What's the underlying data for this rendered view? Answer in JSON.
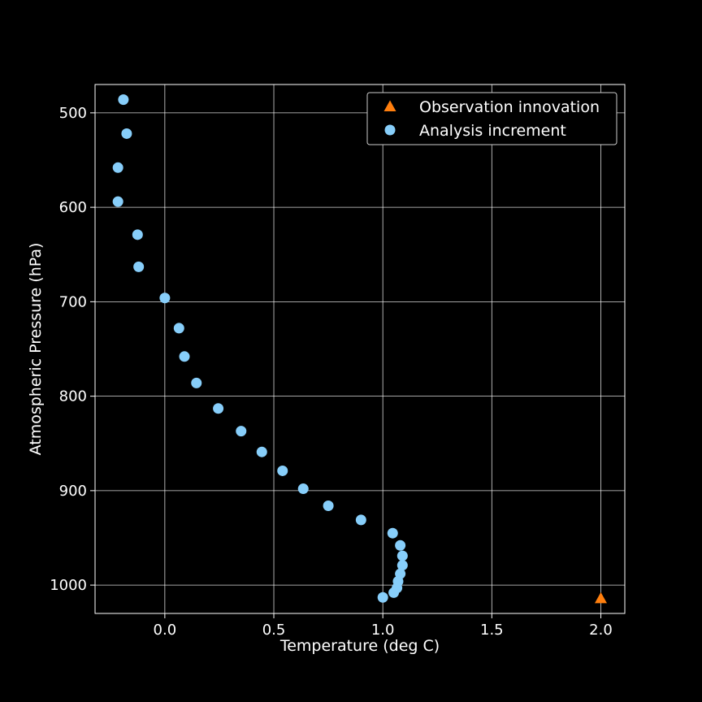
{
  "chart_data": {
    "type": "scatter",
    "xlabel": "Temperature (deg C)",
    "ylabel": "Atmospheric Pressure (hPa)",
    "xlim": [
      -0.32,
      2.11
    ],
    "ylim": [
      1030,
      470
    ],
    "y_inverted": true,
    "x_ticks": [
      0.0,
      0.5,
      1.0,
      1.5,
      2.0
    ],
    "x_tick_labels": [
      "0.0",
      "0.5",
      "1.0",
      "1.5",
      "2.0"
    ],
    "y_ticks": [
      500,
      600,
      700,
      800,
      900,
      1000
    ],
    "y_tick_labels": [
      "500",
      "600",
      "700",
      "800",
      "900",
      "1000"
    ],
    "grid": true,
    "legend_position": "top-right",
    "background": "#000000",
    "foreground": "#ffffff",
    "series": [
      {
        "name": "Observation innovation",
        "marker": "triangle",
        "color": "#ff7f0e",
        "points": [
          {
            "x": 2.0,
            "y": 1014
          }
        ]
      },
      {
        "name": "Analysis increment",
        "marker": "circle",
        "color": "#87cefa",
        "points": [
          {
            "x": -0.19,
            "y": 486
          },
          {
            "x": -0.175,
            "y": 522
          },
          {
            "x": -0.215,
            "y": 558
          },
          {
            "x": -0.215,
            "y": 594
          },
          {
            "x": -0.125,
            "y": 629
          },
          {
            "x": -0.12,
            "y": 663
          },
          {
            "x": 0.0,
            "y": 696
          },
          {
            "x": 0.065,
            "y": 728
          },
          {
            "x": 0.09,
            "y": 758
          },
          {
            "x": 0.145,
            "y": 786
          },
          {
            "x": 0.245,
            "y": 813
          },
          {
            "x": 0.35,
            "y": 837
          },
          {
            "x": 0.445,
            "y": 859
          },
          {
            "x": 0.54,
            "y": 879
          },
          {
            "x": 0.635,
            "y": 898
          },
          {
            "x": 0.75,
            "y": 916
          },
          {
            "x": 0.9,
            "y": 931
          },
          {
            "x": 1.045,
            "y": 945
          },
          {
            "x": 1.08,
            "y": 958
          },
          {
            "x": 1.09,
            "y": 969
          },
          {
            "x": 1.09,
            "y": 979
          },
          {
            "x": 1.08,
            "y": 988
          },
          {
            "x": 1.07,
            "y": 996
          },
          {
            "x": 1.065,
            "y": 1003
          },
          {
            "x": 1.05,
            "y": 1008
          },
          {
            "x": 1.0,
            "y": 1013
          }
        ]
      }
    ]
  }
}
